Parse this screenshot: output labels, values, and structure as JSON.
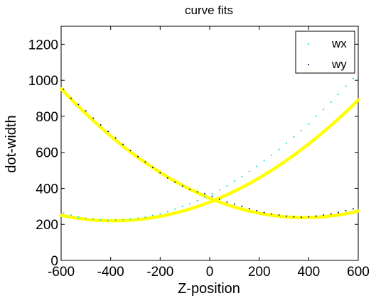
{
  "chart_data": {
    "type": "scatter",
    "title": "curve fits",
    "xlabel": "Z-position",
    "ylabel": "dot-width",
    "xlim": [
      -600,
      600
    ],
    "ylim": [
      0,
      1300
    ],
    "xticks": [
      -600,
      -400,
      -200,
      0,
      200,
      400,
      600
    ],
    "yticks": [
      0,
      200,
      400,
      600,
      800,
      1000,
      1200
    ],
    "xtick_labels": [
      "-600",
      "-400",
      "-200",
      "0",
      "200",
      "400",
      "600"
    ],
    "ytick_labels": [
      "0",
      "200",
      "400",
      "600",
      "800",
      "1000",
      "1200"
    ],
    "grid": false,
    "legend_position": "top-right",
    "series": [
      {
        "name": "wx",
        "marker_color": "#00d8d8",
        "x": [
          -590,
          -560,
          -530,
          -500,
          -470,
          -440,
          -410,
          -380,
          -350,
          -320,
          -290,
          -260,
          -230,
          -200,
          -170,
          -140,
          -110,
          -80,
          -50,
          -20,
          10,
          40,
          70,
          100,
          130,
          160,
          190,
          220,
          250,
          280,
          310,
          340,
          370,
          400,
          430,
          460,
          490,
          520,
          550,
          580
        ],
        "y": [
          262,
          252,
          240,
          233,
          228,
          226,
          222,
          224,
          226,
          230,
          234,
          240,
          250,
          258,
          270,
          284,
          300,
          314,
          332,
          352,
          370,
          392,
          414,
          440,
          466,
          494,
          522,
          554,
          584,
          616,
          650,
          686,
          720,
          758,
          800,
          838,
          878,
          922,
          968,
          1010
        ]
      },
      {
        "name": "wy",
        "marker_color": "#000080",
        "x": [
          -590,
          -560,
          -530,
          -500,
          -470,
          -440,
          -410,
          -380,
          -350,
          -320,
          -290,
          -260,
          -230,
          -200,
          -170,
          -140,
          -110,
          -80,
          -50,
          -20,
          10,
          40,
          70,
          100,
          130,
          160,
          190,
          220,
          250,
          280,
          310,
          340,
          370,
          400,
          430,
          460,
          490,
          520,
          550,
          580
        ],
        "y": [
          950,
          900,
          866,
          830,
          790,
          752,
          716,
          680,
          644,
          610,
          576,
          546,
          516,
          486,
          458,
          434,
          412,
          394,
          380,
          370,
          356,
          340,
          324,
          312,
          300,
          288,
          276,
          266,
          258,
          252,
          246,
          242,
          240,
          242,
          246,
          252,
          258,
          266,
          276,
          286
        ]
      }
    ],
    "fit_curves": {
      "color": "#ffff00",
      "curves": [
        {
          "series": "wx",
          "vertex_x": -390,
          "vertex_y": 220,
          "a": 0.000684
        },
        {
          "series": "wy",
          "vertex_x": 380,
          "vertex_y": 238,
          "a": 0.000744
        }
      ]
    }
  }
}
